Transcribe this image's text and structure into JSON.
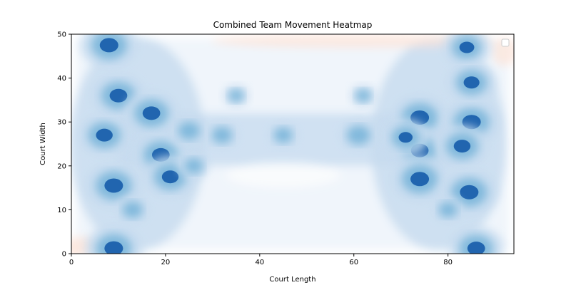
{
  "chart_data": {
    "type": "heatmap",
    "title": "Combined Team Movement Heatmap",
    "xlabel": "Court Length",
    "ylabel": "Court Width",
    "xlim": [
      0,
      94
    ],
    "ylim": [
      0,
      50
    ],
    "xticks": [
      0,
      20,
      40,
      60,
      80
    ],
    "yticks": [
      0,
      10,
      20,
      30,
      40,
      50
    ],
    "legend": {
      "placement": "top-right",
      "entries": []
    },
    "colormap": "blue-white-red (diverging)",
    "colors": {
      "dark_blue": "#1f63ad",
      "mid_blue": "#6aaed6",
      "light_blue": "#c6dbef",
      "pale_blue": "#eef4fb",
      "pale_red": "#fde4d8"
    },
    "hotspots": [
      {
        "x": 8,
        "y": 47.5,
        "intensity": 1.0
      },
      {
        "x": 9,
        "y": 1.2,
        "intensity": 1.0
      },
      {
        "x": 86,
        "y": 1.2,
        "intensity": 0.95
      },
      {
        "x": 84,
        "y": 47,
        "intensity": 0.8
      },
      {
        "x": 9,
        "y": 15.5,
        "intensity": 1.0
      },
      {
        "x": 7,
        "y": 27,
        "intensity": 0.9
      },
      {
        "x": 10,
        "y": 36,
        "intensity": 0.95
      },
      {
        "x": 17,
        "y": 32,
        "intensity": 0.95
      },
      {
        "x": 19,
        "y": 22.5,
        "intensity": 0.95
      },
      {
        "x": 21,
        "y": 17.5,
        "intensity": 0.9
      },
      {
        "x": 74,
        "y": 31,
        "intensity": 1.0
      },
      {
        "x": 74,
        "y": 23.5,
        "intensity": 0.95
      },
      {
        "x": 74,
        "y": 17,
        "intensity": 1.0
      },
      {
        "x": 85,
        "y": 30,
        "intensity": 1.0
      },
      {
        "x": 83,
        "y": 24.5,
        "intensity": 0.9
      },
      {
        "x": 84.5,
        "y": 14,
        "intensity": 1.0
      },
      {
        "x": 85,
        "y": 39,
        "intensity": 0.85
      },
      {
        "x": 71,
        "y": 26.5,
        "intensity": 0.75
      },
      {
        "x": 61,
        "y": 27,
        "intensity": 0.6
      },
      {
        "x": 45,
        "y": 27,
        "intensity": 0.45
      },
      {
        "x": 32,
        "y": 27,
        "intensity": 0.5
      },
      {
        "x": 35,
        "y": 36,
        "intensity": 0.35
      },
      {
        "x": 62,
        "y": 36,
        "intensity": 0.35
      },
      {
        "x": 25,
        "y": 28,
        "intensity": 0.55
      },
      {
        "x": 26,
        "y": 20,
        "intensity": 0.45
      },
      {
        "x": 13,
        "y": 10,
        "intensity": 0.5
      },
      {
        "x": 80,
        "y": 10,
        "intensity": 0.45
      }
    ]
  }
}
